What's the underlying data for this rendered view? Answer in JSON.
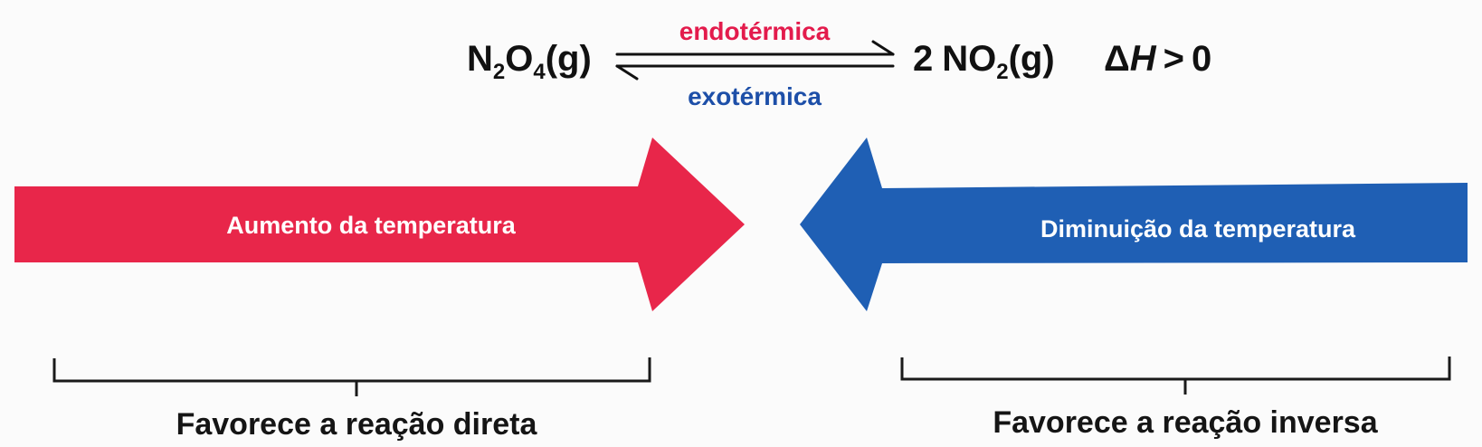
{
  "equation": {
    "reactant": {
      "symbol_1": "N",
      "sub_1": "2",
      "symbol_2": "O",
      "sub_2": "4",
      "state": "(g)"
    },
    "product": {
      "coefficient": "2",
      "symbol_1": "NO",
      "sub_1": "2",
      "state": "(g)"
    },
    "forward_label": "endotérmica",
    "reverse_label": "exotérmica",
    "enthalpy": {
      "delta": "Δ",
      "symbol": "H",
      "relation": ">",
      "value": "0"
    }
  },
  "arrows": {
    "left_label": "Aumento da temperatura",
    "right_label": "Diminuição da temperatura"
  },
  "braces": {
    "left_label": "Favorece a reação direta",
    "right_label": "Favorece a reação inversa"
  },
  "colors": {
    "red": "#e8264a",
    "blue": "#1f5fb4",
    "endothermic_text": "#e31b4c",
    "exothermic_text": "#1d4fa8"
  }
}
